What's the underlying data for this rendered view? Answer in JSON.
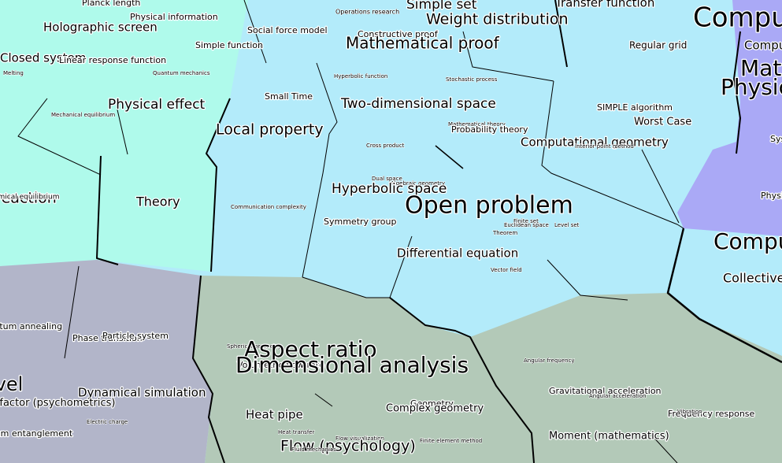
{
  "labels": [
    "Planck length",
    "Physical information",
    "Holographic screen",
    "Closed system",
    "Linear response function",
    "Melting",
    "Quantum mechanics",
    "Physical effect",
    "Mechanical equilibrium",
    "Theory",
    "Simple function",
    "Social force model",
    "Operations research",
    "Simple set",
    "Weight distribution",
    "Constructive proof",
    "Mathematical proof",
    "Transfer function",
    "Computer science",
    "Computing",
    "Mathematics",
    "Physics",
    "System",
    "Physical",
    "Regular grid",
    "Hyperbolic function",
    "Stochastic process",
    "Small Time",
    "Two-dimensional space",
    "SIMPLE algorithm",
    "Worst Case",
    "Local property",
    "Mathematical theory",
    "Probability theory",
    "Computational geometry",
    "Interior point method",
    "Cross product",
    "Dual space",
    "Algebraic geometry",
    "Hyperbolic space",
    "Open problem",
    "Communication complexity",
    "Symmetry group",
    "Finite set",
    "Euclidean space",
    "Level set",
    "Theorem",
    "Computation",
    "Differential equation",
    "Collective behavior",
    "Vector field",
    "Chemical reaction",
    "Chemical equilibrium",
    "Quantum annealing",
    "Phase transition",
    "Particle system",
    "Level",
    "Dynamical simulation",
    "g factor (psychometrics)",
    "Electric charge",
    "Quantum entanglement",
    "Spherical geometry",
    "Aspect ratio",
    "Volumetric flow rate",
    "Dimensional analysis",
    "Angular frequency",
    "Gravitational acceleration",
    "Angular acceleration",
    "Geometry",
    "Complex geometry",
    "Heat pipe",
    "Frequency response",
    "Vibration",
    "Heat transfer",
    "Moment (mathematics)",
    "Flow visualization",
    "Finite element method",
    "Flow (psychology)",
    "Fluid mechanics"
  ]
}
